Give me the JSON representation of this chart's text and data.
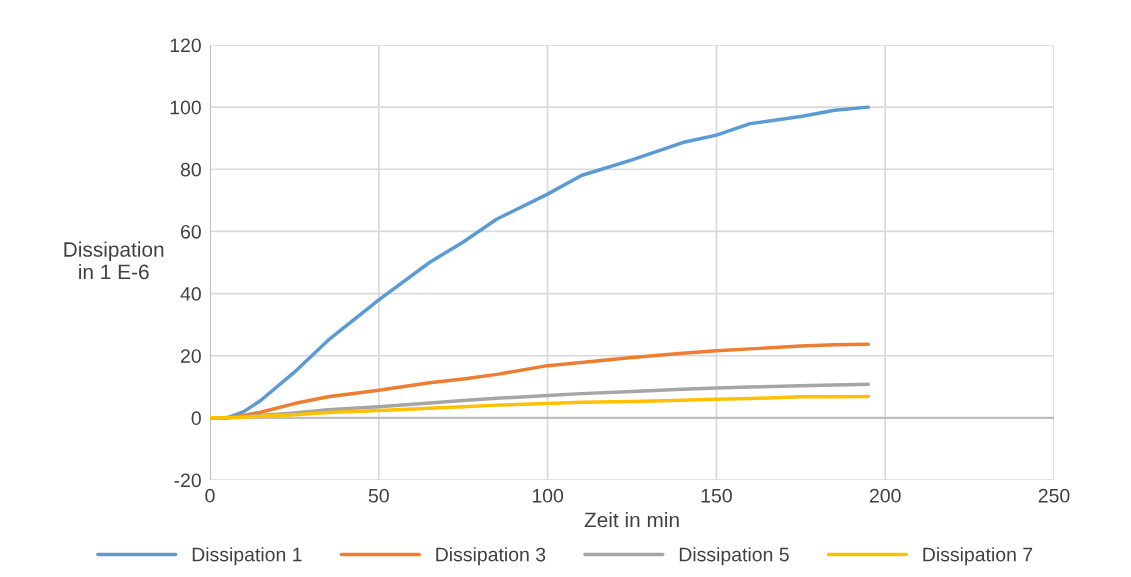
{
  "chart_data": {
    "type": "line",
    "xlabel": "Zeit in min",
    "ylabel": "Dissipation\nin 1 E-6",
    "x": [
      0,
      5,
      10,
      15,
      25,
      35,
      50,
      65,
      75,
      85,
      100,
      110,
      125,
      140,
      150,
      160,
      175,
      185,
      195
    ],
    "series": [
      {
        "name": "Dissipation 1",
        "color": "#5b9bd5",
        "values": [
          0,
          0,
          2,
          5.6,
          14.7,
          25,
          38,
          50,
          56.6,
          64,
          72,
          78,
          83,
          88.6,
          91,
          94.7,
          97,
          99,
          100
        ]
      },
      {
        "name": "Dissipation 3",
        "color": "#ed7d31",
        "values": [
          0,
          0,
          0.8,
          1.8,
          4.6,
          6.8,
          8.9,
          11.3,
          12.5,
          14,
          16.8,
          17.8,
          19.4,
          20.8,
          21.6,
          22.2,
          23.1,
          23.5,
          23.7
        ]
      },
      {
        "name": "Dissipation 5",
        "color": "#a5a5a5",
        "values": [
          0,
          0,
          0.4,
          0.8,
          1.6,
          2.6,
          3.6,
          4.8,
          5.6,
          6.3,
          7.2,
          7.8,
          8.5,
          9.2,
          9.6,
          9.9,
          10.3,
          10.6,
          10.8
        ]
      },
      {
        "name": "Dissipation 7",
        "color": "#ffc000",
        "values": [
          0,
          0,
          0.2,
          0.5,
          1,
          1.7,
          2.4,
          3.1,
          3.6,
          4.1,
          4.6,
          5,
          5.3,
          5.7,
          6,
          6.2,
          6.8,
          6.8,
          6.9
        ]
      }
    ],
    "xlim": [
      0,
      250
    ],
    "xticks": [
      0,
      50,
      100,
      150,
      200,
      250
    ],
    "ylim": [
      -20,
      120
    ],
    "yticks": [
      -20,
      0,
      20,
      40,
      60,
      80,
      100,
      120
    ],
    "grid": true,
    "legend": "bottom",
    "marker": "none",
    "line_style": "solid"
  }
}
